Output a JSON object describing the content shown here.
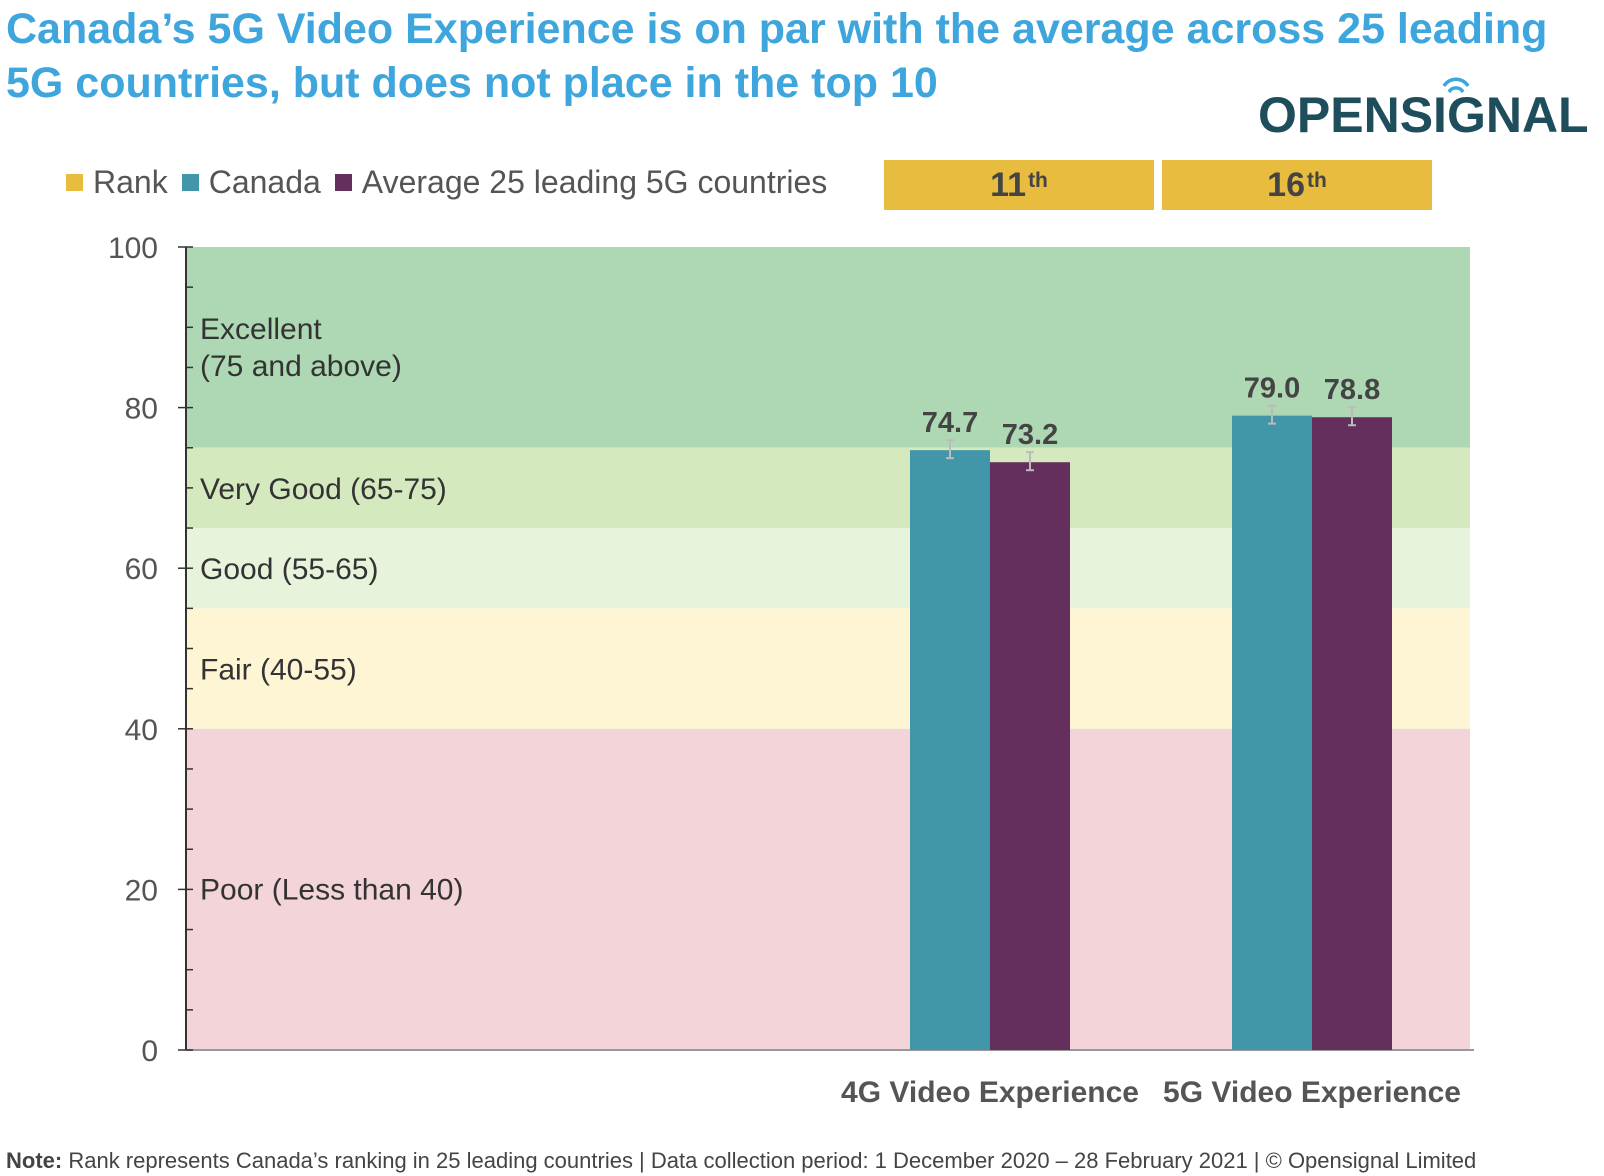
{
  "title": "Canada’s 5G Video Experience is on par with the average across 25 leading 5G countries, but does not place in the top 10",
  "logo": {
    "text": "OPENSIGNAL",
    "color": "#1e4d5c"
  },
  "legend": [
    {
      "label": "Rank",
      "color": "#e8bc3f"
    },
    {
      "label": "Canada",
      "color": "#4197a9"
    },
    {
      "label": "Average 25 leading 5G countries",
      "color": "#642e5d"
    }
  ],
  "ranks": [
    {
      "num": "11",
      "suffix": "th"
    },
    {
      "num": "16",
      "suffix": "th"
    }
  ],
  "chart_data": {
    "type": "bar",
    "categories": [
      "4G Video Experience",
      "5G Video Experience"
    ],
    "series": [
      {
        "name": "Canada",
        "values": [
          74.7,
          79.0
        ],
        "labels": [
          "74.7",
          "79.0"
        ],
        "color": "#4197a9"
      },
      {
        "name": "Average 25 leading 5G countries",
        "values": [
          73.2,
          78.8
        ],
        "labels": [
          "73.2",
          "78.8"
        ],
        "color": "#642e5d"
      }
    ],
    "ylim": [
      0,
      100
    ],
    "yticks": [
      0,
      20,
      40,
      60,
      80,
      100
    ],
    "bands": [
      {
        "from": 75,
        "to": 100,
        "label": "Excellent",
        "label2": "(75 and above)",
        "color": "#aed8b4"
      },
      {
        "from": 65,
        "to": 75,
        "label": "Very Good (65-75)",
        "color": "#d5e9bf"
      },
      {
        "from": 55,
        "to": 65,
        "label": "Good (55-65)",
        "color": "#e8f3dc"
      },
      {
        "from": 40,
        "to": 55,
        "label": "Fair (40-55)",
        "color": "#fdf5d4"
      },
      {
        "from": 0,
        "to": 40,
        "label": "Poor (Less than 40)",
        "color": "#f3d4d8"
      }
    ]
  },
  "note": {
    "label": "Note:",
    "text": " Rank represents Canada’s ranking in 25 leading countries | Data collection period: 1 December 2020 – 28 February 2021  |  © Opensignal Limited"
  }
}
